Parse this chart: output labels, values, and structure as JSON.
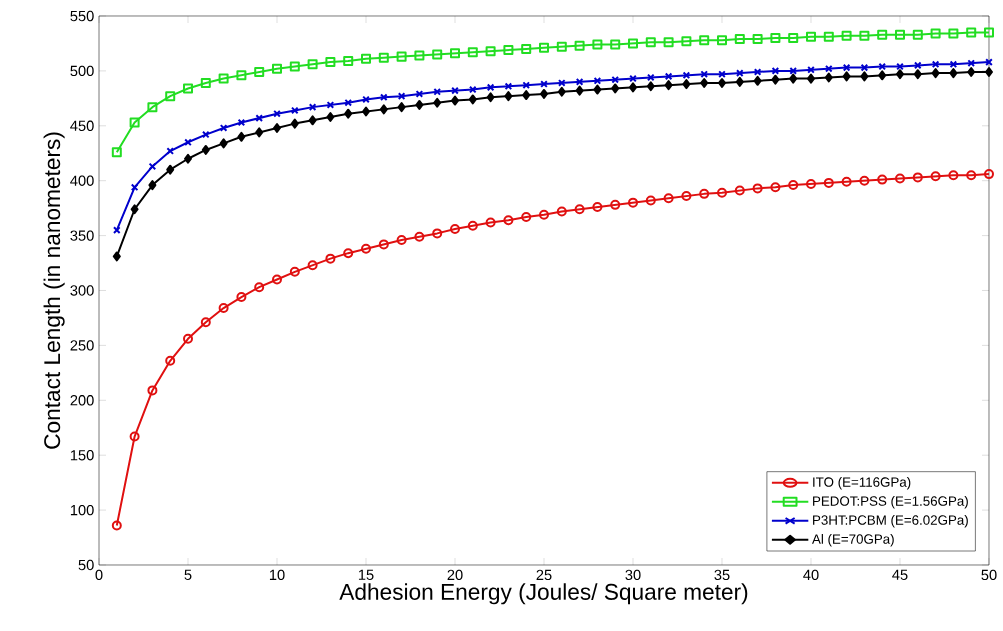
{
  "chart_data": {
    "type": "line",
    "xlabel": "Adhesion Energy (Joules/ Square meter)",
    "ylabel": "Contact Length (in nanometers)",
    "x": [
      1,
      2,
      3,
      4,
      5,
      6,
      7,
      8,
      9,
      10,
      11,
      12,
      13,
      14,
      15,
      16,
      17,
      18,
      19,
      20,
      21,
      22,
      23,
      24,
      25,
      26,
      27,
      28,
      29,
      30,
      31,
      32,
      33,
      34,
      35,
      36,
      37,
      38,
      39,
      40,
      41,
      42,
      43,
      44,
      45,
      46,
      47,
      48,
      49,
      50
    ],
    "xlim": [
      0,
      50
    ],
    "xticks": [
      0,
      5,
      10,
      15,
      20,
      25,
      30,
      35,
      40,
      45,
      50
    ],
    "ylim": [
      50,
      550
    ],
    "yticks": [
      50,
      100,
      150,
      200,
      250,
      300,
      350,
      400,
      450,
      500,
      550
    ],
    "legend": "bottom right",
    "line_style": "solid",
    "series": [
      {
        "name": "ITO (E=116GPa)",
        "color": "#e01010",
        "marker": "circle",
        "values": [
          86,
          167,
          209,
          236,
          256,
          271,
          284,
          294,
          303,
          310,
          317,
          323,
          329,
          334,
          338,
          342,
          346,
          349,
          352,
          356,
          359,
          362,
          364,
          367,
          369,
          372,
          374,
          376,
          378,
          380,
          382,
          384,
          386,
          388,
          389,
          391,
          393,
          394,
          396,
          397,
          398,
          399,
          400,
          401,
          402,
          403,
          404,
          405,
          405,
          406
        ]
      },
      {
        "name": "PEDOT:PSS (E=1.56GPa)",
        "color": "#22dd22",
        "marker": "square",
        "values": [
          426,
          453,
          467,
          477,
          484,
          489,
          493,
          496,
          499,
          502,
          504,
          506,
          508,
          509,
          511,
          512,
          513,
          514,
          515,
          516,
          517,
          518,
          519,
          520,
          521,
          522,
          523,
          524,
          524,
          525,
          526,
          526,
          527,
          528,
          528,
          529,
          529,
          530,
          530,
          531,
          531,
          532,
          532,
          533,
          533,
          533,
          534,
          534,
          535,
          535
        ]
      },
      {
        "name": "P3HT:PCBM (E=6.02GPa)",
        "color": "#0000cc",
        "marker": "cross",
        "values": [
          355,
          394,
          413,
          427,
          435,
          442,
          448,
          453,
          457,
          461,
          464,
          467,
          469,
          471,
          474,
          476,
          477,
          479,
          481,
          482,
          483,
          485,
          486,
          487,
          488,
          489,
          490,
          491,
          492,
          493,
          494,
          495,
          496,
          497,
          497,
          498,
          499,
          500,
          500,
          501,
          502,
          503,
          503,
          504,
          504,
          505,
          506,
          506,
          507,
          508
        ]
      },
      {
        "name": "Al (E=70GPa)",
        "color": "#000000",
        "marker": "diamond",
        "values": [
          331,
          374,
          396,
          410,
          420,
          428,
          434,
          440,
          444,
          448,
          452,
          455,
          458,
          461,
          463,
          465,
          467,
          469,
          471,
          473,
          474,
          476,
          477,
          478,
          479,
          481,
          482,
          483,
          484,
          485,
          486,
          487,
          488,
          489,
          489,
          490,
          491,
          492,
          493,
          493,
          494,
          495,
          495,
          496,
          497,
          497,
          498,
          498,
          499,
          499
        ]
      }
    ]
  }
}
